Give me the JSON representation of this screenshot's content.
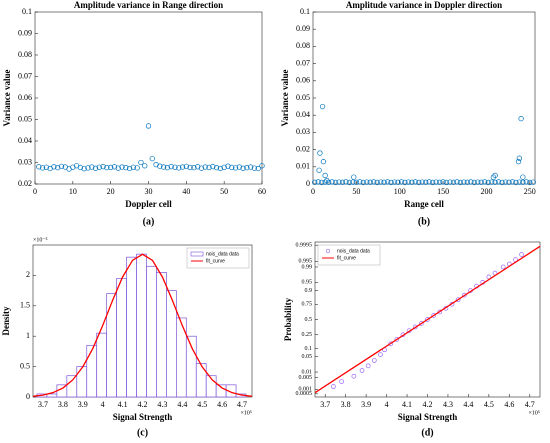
{
  "chart_data": [
    {
      "type": "scatter",
      "title": "Amplitude variance in Range direction",
      "xlabel": "Doppler cell",
      "ylabel": "Variance value",
      "caption": "(a)",
      "color": "#0072bd",
      "x": [
        1,
        2,
        3,
        4,
        5,
        6,
        7,
        8,
        9,
        10,
        11,
        12,
        13,
        14,
        15,
        16,
        17,
        18,
        19,
        20,
        21,
        22,
        23,
        24,
        25,
        26,
        27,
        28,
        29,
        30,
        31,
        32,
        33,
        34,
        35,
        36,
        37,
        38,
        39,
        40,
        41,
        42,
        43,
        44,
        45,
        46,
        47,
        48,
        49,
        50,
        51,
        52,
        53,
        54,
        55,
        56,
        57,
        58,
        59,
        60
      ],
      "values": [
        0.028,
        0.0275,
        0.0278,
        0.0272,
        0.028,
        0.0276,
        0.0282,
        0.0279,
        0.027,
        0.0278,
        0.0285,
        0.0277,
        0.0271,
        0.0275,
        0.0279,
        0.0273,
        0.0278,
        0.0281,
        0.0276,
        0.0277,
        0.028,
        0.0274,
        0.0279,
        0.0276,
        0.0272,
        0.0278,
        0.0275,
        0.03,
        0.0285,
        0.047,
        0.0318,
        0.029,
        0.0283,
        0.0279,
        0.0276,
        0.0281,
        0.0278,
        0.0275,
        0.0279,
        0.0282,
        0.0277,
        0.0276,
        0.028,
        0.0274,
        0.0279,
        0.0277,
        0.0281,
        0.0276,
        0.0272,
        0.0278,
        0.0283,
        0.0277,
        0.0275,
        0.0279,
        0.0273,
        0.0276,
        0.0279,
        0.0274,
        0.0272,
        0.0285
      ],
      "xlim": [
        0,
        60
      ],
      "xticks": [
        0,
        10,
        20,
        30,
        40,
        50,
        60
      ],
      "ylim": [
        0.02,
        0.1
      ],
      "yticks": [
        0.02,
        0.03,
        0.04,
        0.05,
        0.06,
        0.07,
        0.08,
        0.09,
        0.1
      ]
    },
    {
      "type": "scatter",
      "title": "Amplitude variance in Doppler direction",
      "xlabel": "Range cell",
      "ylabel": "Variance value",
      "caption": "(b)",
      "color": "#0072bd",
      "x": [
        2,
        6,
        10,
        14,
        18,
        22,
        26,
        30,
        34,
        38,
        42,
        46,
        50,
        54,
        58,
        62,
        66,
        70,
        74,
        78,
        82,
        86,
        90,
        94,
        98,
        102,
        106,
        110,
        114,
        118,
        122,
        126,
        130,
        134,
        138,
        142,
        146,
        150,
        154,
        158,
        162,
        166,
        170,
        174,
        178,
        182,
        186,
        190,
        194,
        198,
        202,
        206,
        210,
        214,
        218,
        222,
        226,
        230,
        234,
        238,
        242,
        246,
        250,
        254,
        7,
        8,
        11,
        12,
        14,
        16,
        47,
        208,
        210,
        237,
        238,
        240,
        242
      ],
      "values": [
        0.001,
        0.0012,
        0.0009,
        0.0011,
        0.001,
        0.0012,
        0.0009,
        0.0011,
        0.001,
        0.0012,
        0.0009,
        0.0011,
        0.001,
        0.0012,
        0.0009,
        0.0011,
        0.001,
        0.0012,
        0.0009,
        0.0011,
        0.001,
        0.0012,
        0.0009,
        0.0011,
        0.001,
        0.0012,
        0.0009,
        0.0011,
        0.001,
        0.0012,
        0.0009,
        0.0011,
        0.001,
        0.0012,
        0.0009,
        0.0011,
        0.001,
        0.0012,
        0.0009,
        0.0011,
        0.001,
        0.0012,
        0.0009,
        0.0011,
        0.001,
        0.0012,
        0.0009,
        0.0011,
        0.001,
        0.0012,
        0.0009,
        0.0011,
        0.001,
        0.0012,
        0.0009,
        0.0011,
        0.001,
        0.0012,
        0.0009,
        0.0011,
        0.001,
        0.0012,
        0.0009,
        0.0011,
        0.008,
        0.018,
        0.045,
        0.013,
        0.005,
        0.002,
        0.004,
        0.004,
        0.005,
        0.013,
        0.015,
        0.038,
        0.004
      ],
      "xlim": [
        0,
        256
      ],
      "xticks": [
        0,
        50,
        100,
        150,
        200,
        250
      ],
      "ylim": [
        0,
        0.1
      ],
      "yticks": [
        0,
        0.01,
        0.02,
        0.03,
        0.04,
        0.05,
        0.06,
        0.07,
        0.08,
        0.09,
        0.1
      ]
    },
    {
      "type": "histogram",
      "xlabel": "Signal Strength",
      "ylabel": "Density",
      "caption": "(c)",
      "x_offset_label": "×10⁵",
      "y_offset_label": "×10⁻⁵",
      "legend": "upper right",
      "series": [
        {
          "name": "nois_data data",
          "color": "#7b52d9",
          "bins": [
            3.67,
            3.72,
            3.77,
            3.82,
            3.87,
            3.92,
            3.97,
            4.02,
            4.07,
            4.12,
            4.17,
            4.22,
            4.27,
            4.32,
            4.37,
            4.42,
            4.47,
            4.52,
            4.57,
            4.62,
            4.67,
            4.72
          ],
          "values": [
            0.05,
            0.05,
            0.2,
            0.35,
            0.5,
            0.85,
            1.05,
            1.7,
            1.95,
            2.3,
            2.35,
            2.15,
            2.05,
            1.75,
            1.3,
            1.0,
            0.55,
            0.35,
            0.2,
            0.2,
            0.05
          ]
        },
        {
          "name": "fit_curve",
          "color": "#ff0000",
          "x": [
            3.65,
            3.7,
            3.75,
            3.8,
            3.85,
            3.9,
            3.95,
            4.0,
            4.05,
            4.1,
            4.15,
            4.2,
            4.25,
            4.3,
            4.35,
            4.4,
            4.45,
            4.5,
            4.55,
            4.6,
            4.65,
            4.7,
            4.75
          ],
          "values": [
            0.0125,
            0.031,
            0.071,
            0.147,
            0.282,
            0.495,
            0.795,
            1.175,
            1.591,
            1.974,
            2.248,
            2.347,
            2.248,
            1.974,
            1.591,
            1.175,
            0.795,
            0.495,
            0.282,
            0.147,
            0.071,
            0.031,
            0.0125
          ]
        }
      ],
      "xlim": [
        3.65,
        4.75
      ],
      "xticks": [
        3.7,
        3.8,
        3.9,
        4,
        4.1,
        4.2,
        4.3,
        4.4,
        4.5,
        4.6,
        4.7
      ],
      "ylim": [
        0,
        2.5
      ],
      "yticks": [
        0,
        0.5,
        1,
        1.5,
        2
      ]
    },
    {
      "type": "scatter",
      "yscale": "probit",
      "xlabel": "Signal Strength",
      "ylabel": "Probability",
      "caption": "(d)",
      "x_offset_label": "×10⁵",
      "legend": "upper left",
      "series": [
        {
          "name": "nois_data data",
          "color": "#9966ff",
          "marker": "circle",
          "x": [
            3.74,
            3.78,
            3.84,
            3.88,
            3.91,
            3.94,
            3.97,
            3.99,
            4.02,
            4.05,
            4.08,
            4.11,
            4.14,
            4.17,
            4.2,
            4.23,
            4.26,
            4.29,
            4.32,
            4.35,
            4.38,
            4.41,
            4.44,
            4.47,
            4.5,
            4.53,
            4.57,
            4.6,
            4.63,
            4.66
          ],
          "values": [
            0.0015,
            0.003,
            0.006,
            0.012,
            0.02,
            0.035,
            0.06,
            0.09,
            0.14,
            0.19,
            0.25,
            0.31,
            0.37,
            0.43,
            0.5,
            0.57,
            0.63,
            0.69,
            0.75,
            0.81,
            0.86,
            0.9,
            0.93,
            0.95,
            0.97,
            0.98,
            0.99,
            0.993,
            0.996,
            0.998
          ]
        },
        {
          "name": "fit_curve",
          "color": "#ff0000",
          "marker": "line",
          "x": [
            3.65,
            4.75
          ],
          "values": [
            0.0006,
            0.9994
          ]
        }
      ],
      "xlim": [
        3.65,
        4.75
      ],
      "xticks": [
        3.7,
        3.8,
        3.9,
        4,
        4.1,
        4.2,
        4.3,
        4.4,
        4.5,
        4.6,
        4.7
      ],
      "ylim": [
        0.0003,
        0.9997
      ],
      "yticks": [
        0.0005,
        0.001,
        0.005,
        0.01,
        0.05,
        0.1,
        0.25,
        0.5,
        0.75,
        0.9,
        0.95,
        0.99,
        0.995,
        0.9995
      ]
    }
  ]
}
